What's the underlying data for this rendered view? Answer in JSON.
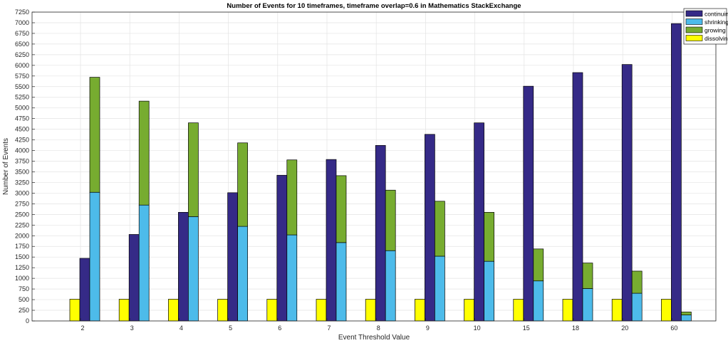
{
  "chart_data": {
    "type": "bar",
    "title": "Number of Events for 10 timeframes, timeframe overlap=0.6 in Mathematics StackExchange",
    "xlabel": "Event Threshold Value",
    "ylabel": "Number of Events",
    "categories": [
      "2",
      "3",
      "4",
      "5",
      "6",
      "7",
      "8",
      "9",
      "10",
      "15",
      "18",
      "20",
      "60"
    ],
    "ylim": [
      0,
      7250
    ],
    "yticks": [
      0,
      250,
      500,
      750,
      1000,
      1250,
      1500,
      1750,
      2000,
      2250,
      2500,
      2750,
      3000,
      3250,
      3500,
      3750,
      4000,
      4250,
      4500,
      4750,
      5000,
      5250,
      5500,
      5750,
      6000,
      6250,
      6500,
      6750,
      7000,
      7250
    ],
    "grid": true,
    "stacked_groups": [
      {
        "stack": "dissolving",
        "series": [
          "dissolving"
        ]
      },
      {
        "stack": "continuing",
        "series": [
          "continuing"
        ]
      },
      {
        "stack": "shrinking+growing",
        "series": [
          "shrinking",
          "growing"
        ]
      }
    ],
    "series": [
      {
        "name": "continuing",
        "color": "#352a87",
        "values": [
          1470,
          2030,
          2550,
          3010,
          3420,
          3790,
          4120,
          4380,
          4650,
          5510,
          5830,
          6020,
          6980
        ]
      },
      {
        "name": "shrinking",
        "color": "#4dbbea",
        "values": [
          3020,
          2720,
          2450,
          2220,
          2020,
          1840,
          1650,
          1520,
          1400,
          940,
          760,
          650,
          140
        ]
      },
      {
        "name": "growing",
        "color": "#77ac30",
        "values": [
          2700,
          2440,
          2200,
          1960,
          1760,
          1570,
          1420,
          1290,
          1150,
          750,
          600,
          520,
          70
        ]
      },
      {
        "name": "dissolving",
        "color": "#ffff00",
        "values": [
          510,
          510,
          510,
          510,
          510,
          510,
          510,
          510,
          510,
          510,
          510,
          510,
          510
        ]
      }
    ],
    "legend": {
      "placement": "top-right",
      "entries": [
        "continuing",
        "shrinking",
        "growing",
        "dissolving"
      ]
    }
  }
}
